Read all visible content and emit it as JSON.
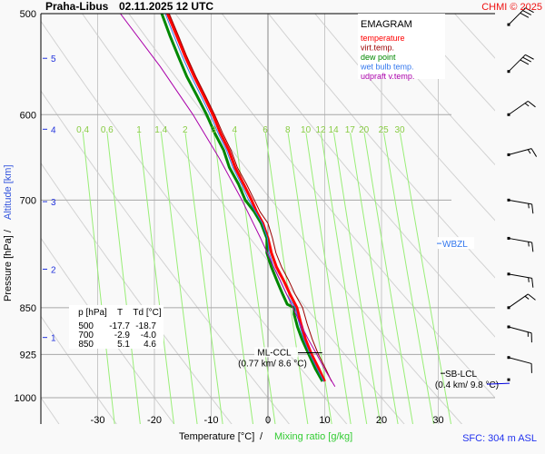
{
  "header": {
    "station": "Praha-Libus",
    "datetime": "02.11.2025 12 UTC",
    "copyright": "CHMI © 2025"
  },
  "footer": {
    "surface": "SFC: 304 m ASL"
  },
  "chart_data": {
    "type": "line",
    "title": "EMAGRAM",
    "xlabel": "Temperature [°C]",
    "xlabel_separator": "/",
    "xlabel_secondary": "Mixing ratio [g/kg]",
    "ylabel": "Pressure [hPa]",
    "ylabel_separator": "/",
    "ylabel_secondary": "Altitude [km]",
    "xlim": [
      -38,
      42
    ],
    "ylim": [
      1060,
      500
    ],
    "x_ticks": [
      -30,
      -20,
      -10,
      0,
      10,
      20,
      30
    ],
    "x_tick_labels": [
      "-30",
      "-20",
      "-10",
      "0",
      "10",
      "20",
      "30"
    ],
    "y_ticks": [
      500,
      600,
      700,
      850,
      925,
      1000
    ],
    "y_tick_labels": [
      "500",
      "600",
      "700",
      "850",
      "925",
      "1000"
    ],
    "altitude_ticks": [
      {
        "km": 1,
        "p": 897
      },
      {
        "km": 2,
        "p": 793
      },
      {
        "km": 3,
        "p": 702
      },
      {
        "km": 4,
        "p": 616
      },
      {
        "km": 5,
        "p": 542
      }
    ],
    "mixing_ratio_labels": [
      "0.4",
      "0.6",
      "1",
      "1.4",
      "2",
      "3",
      "4",
      "6",
      "8",
      "10",
      "12",
      "14",
      "17",
      "20",
      "25",
      "30"
    ],
    "mixing_ratio_values": [
      0.4,
      0.6,
      1,
      1.4,
      2,
      3,
      4,
      6,
      8,
      10,
      12,
      14,
      17,
      20,
      25,
      30
    ],
    "legend": {
      "position": "top-right",
      "entries": [
        {
          "name": "temperature",
          "color": "#ff0000"
        },
        {
          "name": "virt.temp.",
          "color": "#990000"
        },
        {
          "name": "dew point",
          "color": "#008800"
        },
        {
          "name": "wet bulb temp.",
          "color": "#3377ee"
        },
        {
          "name": "udpraft v.temp.",
          "color": "#aa00aa"
        }
      ]
    },
    "series": [
      {
        "name": "temperature",
        "color": "#ff0000",
        "points": [
          [
            971,
            10.0
          ],
          [
            950,
            9.0
          ],
          [
            925,
            7.7
          ],
          [
            900,
            6.6
          ],
          [
            875,
            5.8
          ],
          [
            850,
            5.1
          ],
          [
            830,
            3.9
          ],
          [
            810,
            2.8
          ],
          [
            790,
            1.5
          ],
          [
            770,
            0.6
          ],
          [
            750,
            0.0
          ],
          [
            730,
            -0.9
          ],
          [
            715,
            -2.0
          ],
          [
            700,
            -2.9
          ],
          [
            680,
            -4.3
          ],
          [
            660,
            -5.8
          ],
          [
            640,
            -6.9
          ],
          [
            620,
            -8.4
          ],
          [
            600,
            -9.7
          ],
          [
            580,
            -11.3
          ],
          [
            560,
            -13.0
          ],
          [
            540,
            -14.6
          ],
          [
            520,
            -16.1
          ],
          [
            500,
            -17.7
          ]
        ]
      },
      {
        "name": "virt.temp.",
        "color": "#990000",
        "points": [
          [
            971,
            11.2
          ],
          [
            950,
            10.2
          ],
          [
            925,
            8.9
          ],
          [
            900,
            7.8
          ],
          [
            875,
            6.9
          ],
          [
            850,
            6.1
          ],
          [
            830,
            4.8
          ],
          [
            810,
            3.7
          ],
          [
            790,
            2.4
          ],
          [
            770,
            1.4
          ],
          [
            750,
            0.8
          ],
          [
            730,
            0.0
          ],
          [
            715,
            -1.4
          ],
          [
            700,
            -2.4
          ],
          [
            680,
            -3.8
          ],
          [
            660,
            -5.4
          ],
          [
            640,
            -6.5
          ],
          [
            620,
            -8.0
          ],
          [
            600,
            -9.4
          ],
          [
            580,
            -11.0
          ],
          [
            560,
            -12.7
          ],
          [
            540,
            -14.3
          ],
          [
            520,
            -15.8
          ],
          [
            500,
            -17.4
          ]
        ]
      },
      {
        "name": "dew point",
        "color": "#008800",
        "points": [
          [
            971,
            9.6
          ],
          [
            950,
            8.4
          ],
          [
            925,
            7.2
          ],
          [
            900,
            6.0
          ],
          [
            880,
            5.2
          ],
          [
            860,
            4.6
          ],
          [
            850,
            4.6
          ],
          [
            845,
            3.4
          ],
          [
            830,
            2.6
          ],
          [
            810,
            1.6
          ],
          [
            790,
            0.6
          ],
          [
            770,
            -0.2
          ],
          [
            750,
            -0.2
          ],
          [
            730,
            -1.2
          ],
          [
            715,
            -2.4
          ],
          [
            700,
            -4.0
          ],
          [
            680,
            -5.2
          ],
          [
            660,
            -6.8
          ],
          [
            640,
            -7.8
          ],
          [
            620,
            -9.4
          ],
          [
            600,
            -10.8
          ],
          [
            580,
            -12.5
          ],
          [
            560,
            -14.3
          ],
          [
            540,
            -15.8
          ],
          [
            520,
            -17.3
          ],
          [
            500,
            -18.7
          ]
        ]
      },
      {
        "name": "wet bulb temp.",
        "color": "#3377ee",
        "points": [
          [
            971,
            9.8
          ],
          [
            950,
            8.7
          ],
          [
            925,
            7.4
          ],
          [
            900,
            6.3
          ],
          [
            875,
            5.5
          ],
          [
            850,
            4.8
          ],
          [
            830,
            3.3
          ],
          [
            810,
            2.2
          ],
          [
            790,
            1.0
          ],
          [
            770,
            0.2
          ],
          [
            750,
            -0.1
          ],
          [
            730,
            -1.0
          ],
          [
            715,
            -2.2
          ],
          [
            700,
            -3.4
          ],
          [
            680,
            -4.7
          ],
          [
            660,
            -6.2
          ],
          [
            640,
            -7.3
          ],
          [
            620,
            -8.8
          ],
          [
            600,
            -10.2
          ],
          [
            580,
            -11.8
          ],
          [
            560,
            -13.5
          ],
          [
            540,
            -15.1
          ],
          [
            520,
            -16.6
          ],
          [
            500,
            -18.1
          ]
        ]
      },
      {
        "name": "udpraft v.temp.",
        "color": "#aa00aa",
        "points": [
          [
            980,
            11.8
          ],
          [
            950,
            10.0
          ],
          [
            925,
            8.6
          ],
          [
            900,
            7.1
          ],
          [
            875,
            5.7
          ],
          [
            850,
            4.4
          ],
          [
            800,
            1.6
          ],
          [
            750,
            -1.3
          ],
          [
            700,
            -4.6
          ],
          [
            650,
            -8.5
          ],
          [
            600,
            -13.2
          ],
          [
            550,
            -19.0
          ],
          [
            500,
            -26.0
          ]
        ]
      }
    ],
    "annotations": [
      {
        "label": "ML-CCL",
        "detail": "(0.77 km/ 8.6 °C)",
        "p": 922,
        "t": 8.6
      },
      {
        "label": "SB-LCL",
        "detail": "(0.4 km/ 9.8 °C)",
        "p": 968,
        "t": 9.8
      },
      {
        "label": "WBZL",
        "p": 757
      }
    ],
    "sounding_table": {
      "headers": [
        "p [hPa]",
        "T",
        "Td [°C]"
      ],
      "rows": [
        [
          "500",
          "-17.7",
          "-18.7"
        ],
        [
          "700",
          "-2.9",
          "-4.0"
        ],
        [
          "850",
          "5.1",
          "4.6"
        ]
      ]
    },
    "wind_barbs": [
      {
        "p": 510,
        "dir": 225,
        "speed_kt": 30
      },
      {
        "p": 555,
        "dir": 225,
        "speed_kt": 30
      },
      {
        "p": 600,
        "dir": 235,
        "speed_kt": 15
      },
      {
        "p": 645,
        "dir": 255,
        "speed_kt": 15
      },
      {
        "p": 700,
        "dir": 280,
        "speed_kt": 15
      },
      {
        "p": 750,
        "dir": 280,
        "speed_kt": 15
      },
      {
        "p": 800,
        "dir": 280,
        "speed_kt": 15
      },
      {
        "p": 850,
        "dir": 235,
        "speed_kt": 15
      },
      {
        "p": 880,
        "dir": 285,
        "speed_kt": 15
      },
      {
        "p": 930,
        "dir": 285,
        "speed_kt": 10
      },
      {
        "p": 968,
        "dir": 270,
        "speed_kt": 0
      }
    ]
  }
}
